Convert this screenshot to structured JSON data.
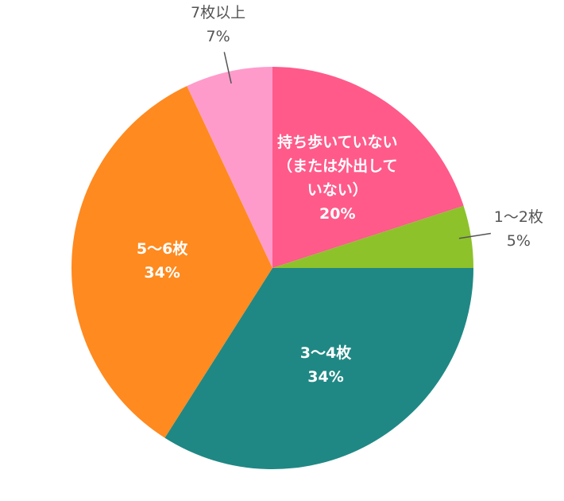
{
  "chart_data": {
    "type": "pie",
    "categories": [
      "持ち歩いていない（または外出していない）",
      "1〜2枚",
      "3〜4枚",
      "5〜6枚",
      "7枚以上"
    ],
    "values": [
      20,
      5,
      34,
      34,
      7
    ],
    "value_labels": [
      "20%",
      "5%",
      "34%",
      "34%",
      "7%"
    ],
    "colors": [
      "#ff5a8a",
      "#8dc22b",
      "#1f8884",
      "#ff8a1f",
      "#ff9bcb"
    ]
  }
}
